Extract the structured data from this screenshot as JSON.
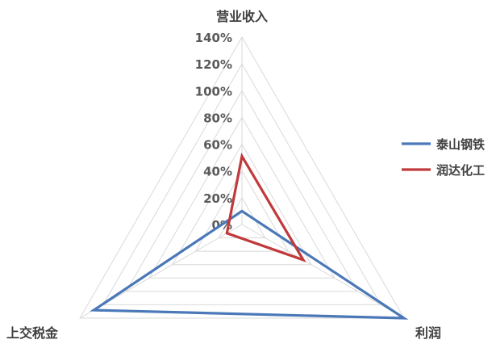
{
  "chart_data": {
    "type": "radar",
    "title": "",
    "axes": [
      "营业收入",
      "利润",
      "上交税金"
    ],
    "ticks": [
      "0%",
      "20%",
      "40%",
      "60%",
      "80%",
      "100%",
      "120%",
      "140%"
    ],
    "rmax": 140,
    "grid": true,
    "legend_position": "right",
    "series": [
      {
        "name": "泰山钢铁",
        "color": "#4a78b8",
        "values": [
          10,
          140,
          128
        ]
      },
      {
        "name": "润达化工",
        "color": "#c0393b",
        "values": [
          51,
          53,
          13
        ]
      }
    ]
  }
}
